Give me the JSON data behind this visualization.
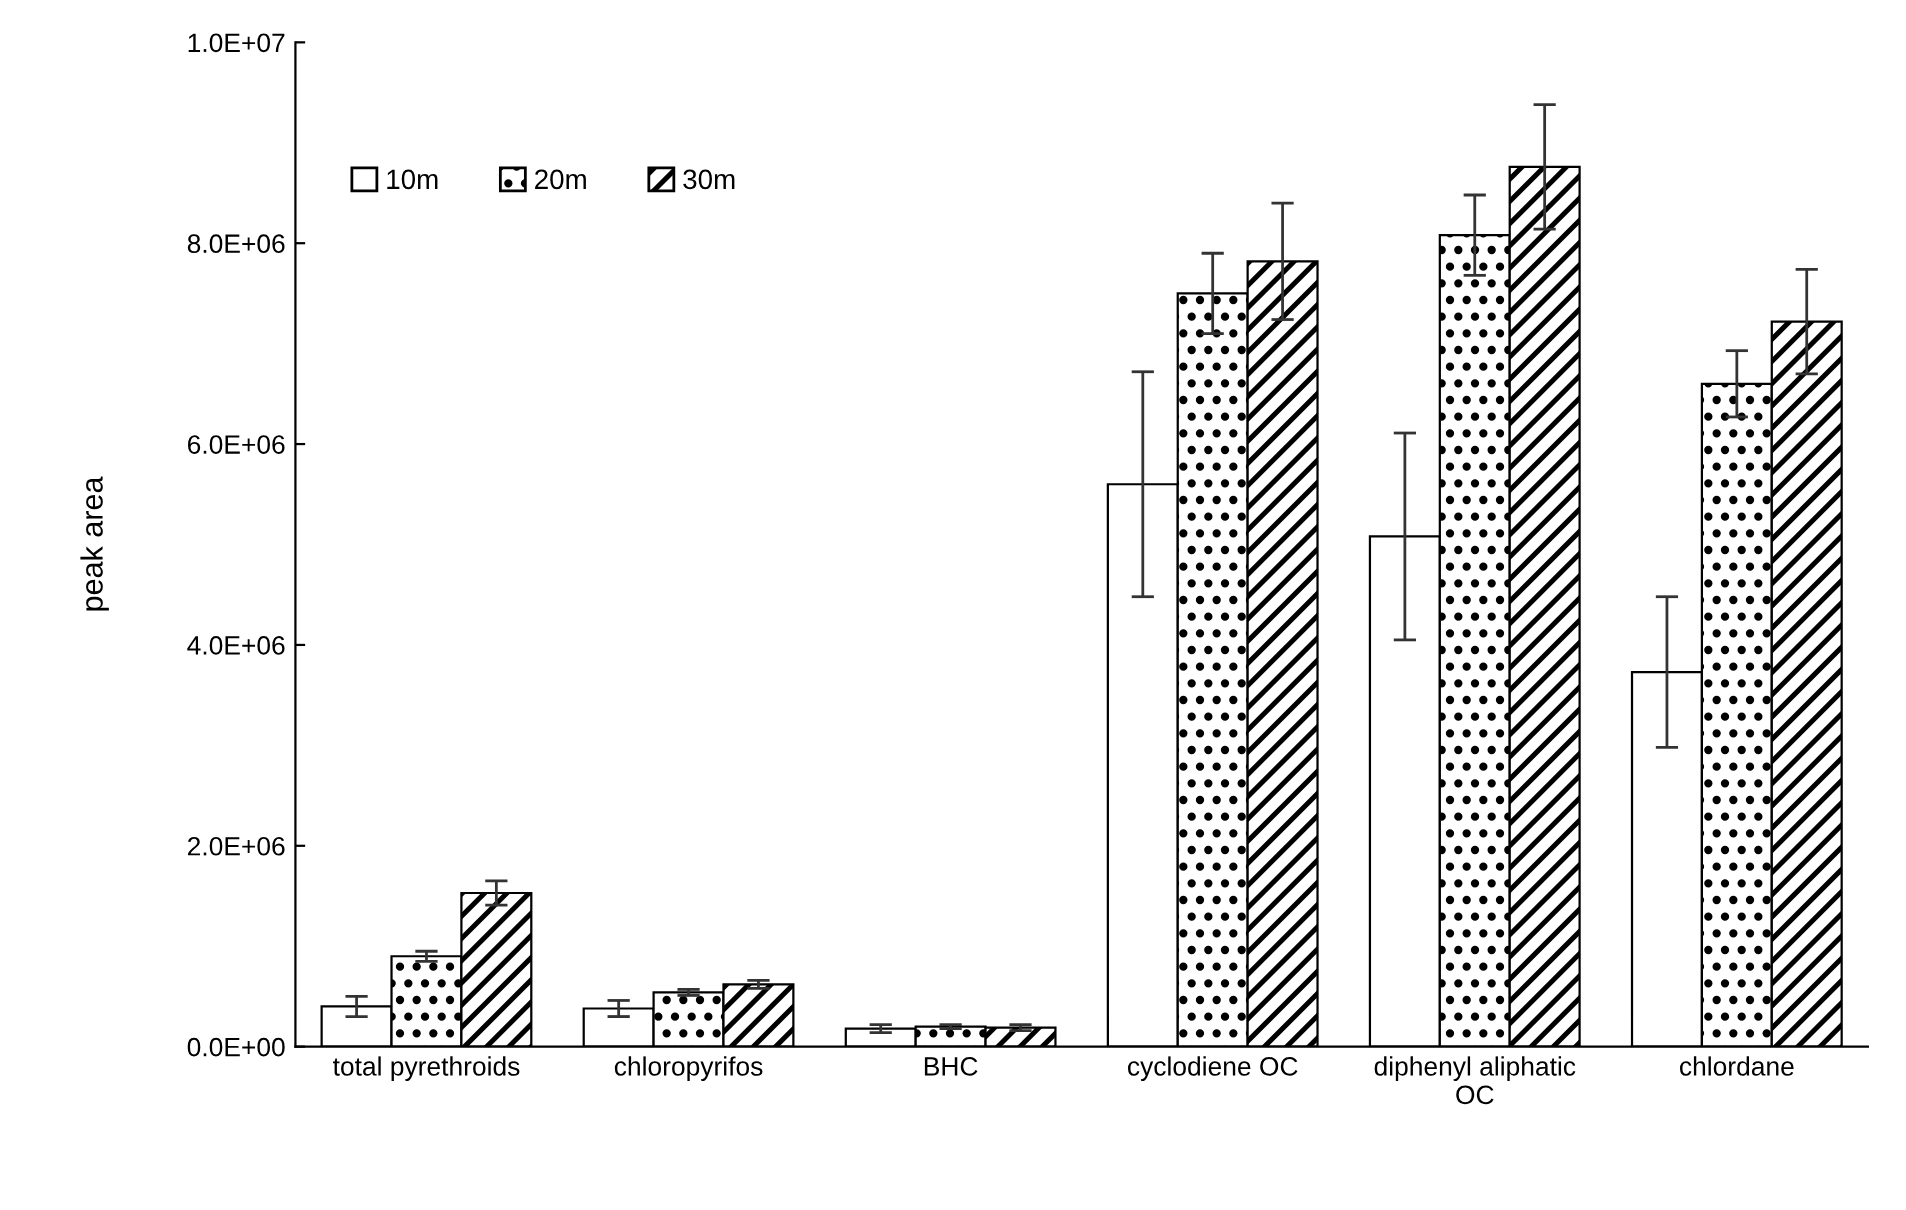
{
  "chart_data": {
    "type": "bar",
    "ylabel": "peak area",
    "categories": [
      "total pyrethroids",
      "chloropyrifos",
      "BHC",
      "cyclodiene OC",
      "diphenyl aliphatic\nOC",
      "chlordane"
    ],
    "series": [
      {
        "name": "10m",
        "color": "#ffffff",
        "values": [
          400000,
          380000,
          180000,
          5600000,
          5080000,
          3730000
        ],
        "errors": [
          100000,
          80000,
          40000,
          1120000,
          1030000,
          750000
        ]
      },
      {
        "name": "20m",
        "color": "#000000",
        "values": [
          900000,
          540000,
          200000,
          7500000,
          8080000,
          6600000
        ],
        "errors": [
          50000,
          30000,
          20000,
          400000,
          400000,
          330000
        ]
      },
      {
        "name": "30m",
        "color": "#000000",
        "values": [
          1530000,
          620000,
          190000,
          7820000,
          8760000,
          7220000
        ],
        "errors": [
          120000,
          40000,
          30000,
          580000,
          620000,
          520000
        ]
      }
    ],
    "ylim": [
      0,
      10000000
    ],
    "yticks": [
      {
        "value": 0,
        "label": "0.0E+00"
      },
      {
        "value": 2000000,
        "label": "2.0E+06"
      },
      {
        "value": 4000000,
        "label": "4.0E+06"
      },
      {
        "value": 6000000,
        "label": "6.0E+06"
      },
      {
        "value": 8000000,
        "label": "8.0E+06"
      },
      {
        "value": 10000000,
        "label": "1.0E+07"
      }
    ],
    "grid": false,
    "legend": "top left"
  }
}
